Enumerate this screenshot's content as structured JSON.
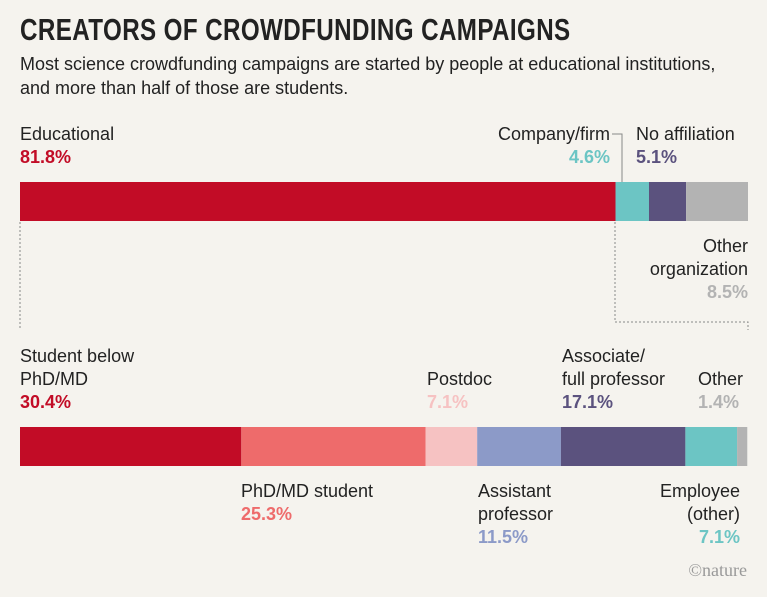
{
  "header": {
    "title": "CREATORS OF CROWDFUNDING CAMPAIGNS",
    "subtitle": "Most science crowdfunding campaigns are started by people at educational institutions, and more than half of those are students."
  },
  "chart_data": [
    {
      "type": "stacked-bar",
      "orientation": "horizontal",
      "xlim": [
        0,
        100
      ],
      "series": [
        {
          "name": "Educational",
          "color": "#c20c26",
          "values": [
            81.8
          ],
          "value_labels": [
            "81.8%"
          ]
        },
        {
          "name": "Company/firm",
          "color": "#6cc5c4",
          "values": [
            4.6
          ],
          "value_labels": [
            "4.6%"
          ]
        },
        {
          "name": "No affiliation",
          "color": "#5b527e",
          "values": [
            5.1
          ],
          "value_labels": [
            "5.1%"
          ]
        },
        {
          "name": "Other\norganization",
          "color": "#b3b3b3",
          "values": [
            8.5
          ],
          "value_labels": [
            "8.5%"
          ]
        }
      ]
    },
    {
      "type": "stacked-bar",
      "orientation": "horizontal",
      "xlim": [
        0,
        100
      ],
      "series": [
        {
          "name": "Student below\nPhD/MD",
          "color": "#c20c26",
          "values": [
            30.4
          ],
          "value_labels": [
            "30.4%"
          ]
        },
        {
          "name": "PhD/MD student",
          "color": "#ee6b6b",
          "values": [
            25.3
          ],
          "value_labels": [
            "25.3%"
          ]
        },
        {
          "name": "Postdoc",
          "color": "#f6c2c2",
          "values": [
            7.1
          ],
          "value_labels": [
            "7.1%"
          ]
        },
        {
          "name": "Assistant\nprofessor",
          "color": "#8c9ac8",
          "values": [
            11.5
          ],
          "value_labels": [
            "11.5%"
          ]
        },
        {
          "name": "Associate/\nfull professor",
          "color": "#5b527e",
          "values": [
            17.1
          ],
          "value_labels": [
            "17.1%"
          ]
        },
        {
          "name": "Employee\n(other)",
          "color": "#6cc5c4",
          "values": [
            7.1
          ],
          "value_labels": [
            "7.1%"
          ]
        },
        {
          "name": "Other",
          "color": "#b3b3b3",
          "values": [
            1.4
          ],
          "value_labels": [
            "1.4%"
          ]
        }
      ]
    }
  ],
  "credit": "©nature"
}
